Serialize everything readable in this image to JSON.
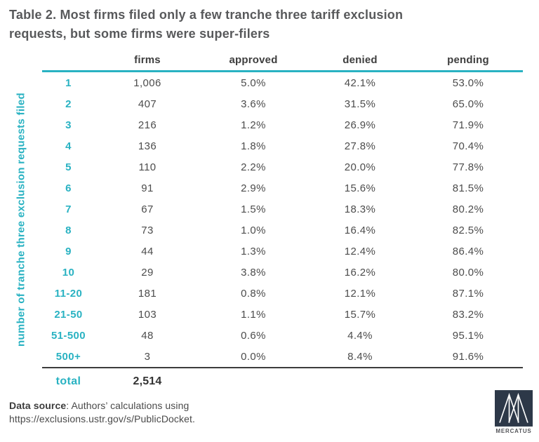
{
  "title": {
    "line1": "Table 2. Most firms filed only a few tranche three tariff exclusion",
    "line2": "requests, but some firms were super-filers"
  },
  "axis_label": "number of tranche three exclusion requests filed",
  "colors": {
    "teal_accent": "#29b2c2",
    "title_gray": "#58595b",
    "body_text": "#4c4c4c",
    "dark_rule": "#3c3c3c",
    "logo_background": "#2d3848"
  },
  "chart_data": {
    "type": "table",
    "title": "Table 2. Most firms filed only a few tranche three tariff exclusion requests, but some firms were super-filers",
    "row_axis_label": "number of tranche three exclusion requests filed",
    "columns": [
      "firms",
      "approved",
      "denied",
      "pending"
    ],
    "rows": [
      {
        "label": "1",
        "values": [
          "1,006",
          "5.0%",
          "42.1%",
          "53.0%"
        ]
      },
      {
        "label": "2",
        "values": [
          "407",
          "3.6%",
          "31.5%",
          "65.0%"
        ]
      },
      {
        "label": "3",
        "values": [
          "216",
          "1.2%",
          "26.9%",
          "71.9%"
        ]
      },
      {
        "label": "4",
        "values": [
          "136",
          "1.8%",
          "27.8%",
          "70.4%"
        ]
      },
      {
        "label": "5",
        "values": [
          "110",
          "2.2%",
          "20.0%",
          "77.8%"
        ]
      },
      {
        "label": "6",
        "values": [
          "91",
          "2.9%",
          "15.6%",
          "81.5%"
        ]
      },
      {
        "label": "7",
        "values": [
          "67",
          "1.5%",
          "18.3%",
          "80.2%"
        ]
      },
      {
        "label": "8",
        "values": [
          "73",
          "1.0%",
          "16.4%",
          "82.5%"
        ]
      },
      {
        "label": "9",
        "values": [
          "44",
          "1.3%",
          "12.4%",
          "86.4%"
        ]
      },
      {
        "label": "10",
        "values": [
          "29",
          "3.8%",
          "16.2%",
          "80.0%"
        ]
      },
      {
        "label": "11-20",
        "values": [
          "181",
          "0.8%",
          "12.1%",
          "87.1%"
        ]
      },
      {
        "label": "21-50",
        "values": [
          "103",
          "1.1%",
          "15.7%",
          "83.2%"
        ]
      },
      {
        "label": "51-500",
        "values": [
          "48",
          "0.6%",
          "4.4%",
          "95.1%"
        ]
      },
      {
        "label": "500+",
        "values": [
          "3",
          "0.0%",
          "8.4%",
          "91.6%"
        ]
      }
    ],
    "total": {
      "label": "total",
      "firms": "2,514"
    }
  },
  "footer": {
    "source_label": "Data source",
    "source_rest": ": Authors’ calculations using",
    "source_url": "https://exclusions.ustr.gov/s/PublicDocket."
  },
  "logo": {
    "text": "MERCATUS"
  }
}
